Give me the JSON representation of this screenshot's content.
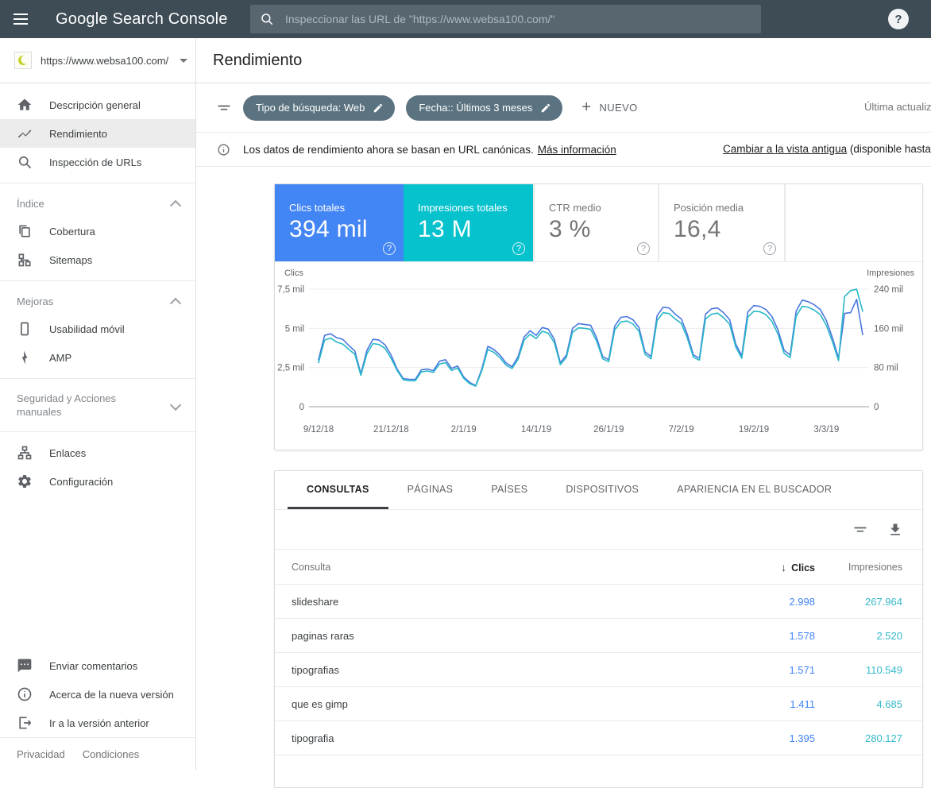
{
  "topbar": {
    "logo": "Google Search Console",
    "search_placeholder": "Inspeccionar las URL de \"https://www.websa100.com/\"",
    "help_label": "?"
  },
  "property": {
    "url": "https://www.websa100.com/"
  },
  "sidebar": {
    "items": [
      {
        "label": "Descripción general",
        "icon": "home-icon"
      },
      {
        "label": "Rendimiento",
        "icon": "trending-up-icon",
        "selected": true
      },
      {
        "label": "Inspección de URLs",
        "icon": "search-icon"
      }
    ],
    "sections": [
      {
        "title": "Índice",
        "expanded": true
      },
      {
        "title": "Mejoras",
        "expanded": true
      },
      {
        "title": "Seguridad y Acciones manuales",
        "expanded": false
      }
    ],
    "index_items": [
      {
        "label": "Cobertura",
        "icon": "coverage-icon"
      },
      {
        "label": "Sitemaps",
        "icon": "sitemap-icon"
      }
    ],
    "mejoras_items": [
      {
        "label": "Usabilidad móvil",
        "icon": "mobile-icon"
      },
      {
        "label": "AMP",
        "icon": "bolt-icon"
      }
    ],
    "extra_items": [
      {
        "label": "Enlaces",
        "icon": "links-icon"
      },
      {
        "label": "Configuración",
        "icon": "gear-icon"
      }
    ],
    "footer_items": [
      {
        "label": "Enviar comentarios",
        "icon": "feedback-icon"
      },
      {
        "label": "Acerca de la nueva versión",
        "icon": "info-icon"
      },
      {
        "label": "Ir a la versión anterior",
        "icon": "exit-icon"
      }
    ],
    "legal": [
      "Privacidad",
      "Condiciones"
    ]
  },
  "header": {
    "title": "Rendimiento"
  },
  "filters": {
    "chips": [
      {
        "label": "Tipo de búsqueda: Web"
      },
      {
        "label": "Fecha:: Últimos 3 meses"
      }
    ],
    "new_button": "NUEVO",
    "plus": "+",
    "last_update": "Última actualiza"
  },
  "notice": {
    "text": "Los datos de rendimiento ahora se basan en URL canónicas.",
    "link": "Más información",
    "right_link": "Cambiar a la vista antigua",
    "right_note": " (disponible hasta el"
  },
  "metrics": [
    {
      "label": "Clics totales",
      "value": "394 mil",
      "color": "#4285f4",
      "selected": true,
      "help": "?"
    },
    {
      "label": "Impresiones totales",
      "value": "13 M",
      "color": "#06c2cd",
      "selected": true,
      "help": "?"
    },
    {
      "label": "CTR medio",
      "value": "3 %",
      "color": "#ffffff",
      "selected": false,
      "help": "?"
    },
    {
      "label": "Posición media",
      "value": "16,4",
      "color": "#ffffff",
      "selected": false,
      "help": "?"
    }
  ],
  "chart_data": {
    "type": "line",
    "title": "",
    "ylabel_left": "Clics",
    "ylabel_right": "Impresiones",
    "grid": true,
    "legend_position": "none",
    "y_left_ticks": [
      "7,5 mil",
      "5 mil",
      "2,5 mil",
      "0"
    ],
    "y_right_ticks": [
      "240 mil",
      "160 mil",
      "80 mil",
      "0"
    ],
    "y_left_range_mil": [
      0,
      7.5
    ],
    "y_right_range_mil": [
      0,
      240
    ],
    "x_tick_labels": [
      "9/12/18",
      "21/12/18",
      "2/1/19",
      "14/1/19",
      "26/1/19",
      "7/2/19",
      "19/2/19",
      "3/3/19"
    ],
    "x_tick_positions": [
      0,
      12,
      24,
      36,
      48,
      60,
      72,
      84
    ],
    "x_range_days": [
      0,
      90
    ],
    "series": [
      {
        "name": "Clics",
        "axis": "left",
        "unit": "mil",
        "color": "#4a77e0",
        "values": [
          3.0,
          4.55,
          4.65,
          4.4,
          4.3,
          3.9,
          3.55,
          2.1,
          3.6,
          4.3,
          4.25,
          3.95,
          3.3,
          2.4,
          1.8,
          1.75,
          1.75,
          2.35,
          2.4,
          2.3,
          2.9,
          3.0,
          2.45,
          2.6,
          1.9,
          1.55,
          1.35,
          2.4,
          3.85,
          3.65,
          3.3,
          2.8,
          2.55,
          3.2,
          4.45,
          4.85,
          4.55,
          5.05,
          4.95,
          4.3,
          2.8,
          3.3,
          5.0,
          5.3,
          5.25,
          5.2,
          4.4,
          3.2,
          3.0,
          5.15,
          5.7,
          5.75,
          5.55,
          5.05,
          3.5,
          3.2,
          5.8,
          6.35,
          6.3,
          5.9,
          5.6,
          4.6,
          3.3,
          3.1,
          5.9,
          6.25,
          6.3,
          6.0,
          5.55,
          4.0,
          3.25,
          6.05,
          6.45,
          6.4,
          6.2,
          5.75,
          4.9,
          3.6,
          3.3,
          6.1,
          6.8,
          6.7,
          6.5,
          6.2,
          5.5,
          4.4,
          3.1,
          5.95,
          6.0,
          6.85,
          4.6
        ]
      },
      {
        "name": "Impresiones",
        "axis": "right",
        "unit": "mil",
        "color": "#27b8c7",
        "values": [
          90,
          136,
          140,
          132,
          128,
          117,
          107,
          64,
          108,
          129,
          127,
          119,
          99,
          74,
          55,
          53,
          53,
          71,
          73,
          70,
          87,
          90,
          74,
          79,
          58,
          47,
          42,
          73,
          117,
          111,
          100,
          85,
          78,
          97,
          136,
          148,
          139,
          154,
          150,
          131,
          86,
          101,
          152,
          161,
          160,
          158,
          134,
          98,
          92,
          157,
          173,
          175,
          169,
          154,
          107,
          98,
          176,
          192,
          190,
          179,
          170,
          140,
          101,
          95,
          179,
          189,
          191,
          182,
          168,
          122,
          99,
          183,
          195,
          194,
          188,
          174,
          148,
          109,
          100,
          185,
          205,
          203,
          197,
          188,
          166,
          133,
          94,
          225,
          237,
          240,
          195
        ]
      }
    ]
  },
  "table": {
    "tabs": [
      "CONSULTAS",
      "PÁGINAS",
      "PAÍSES",
      "DISPOSITIVOS",
      "APARIENCIA EN EL BUSCADOR"
    ],
    "active_tab": "CONSULTAS",
    "columns": {
      "query": "Consulta",
      "clicks": "Clics",
      "impressions": "Impresiones"
    },
    "sort": {
      "column": "Clics",
      "direction": "desc",
      "arrow": "↓"
    },
    "rows": [
      {
        "query": "slideshare",
        "clicks": "2.998",
        "impressions": "267.964"
      },
      {
        "query": "paginas raras",
        "clicks": "1.578",
        "impressions": "2.520"
      },
      {
        "query": "tipografias",
        "clicks": "1.571",
        "impressions": "110.549"
      },
      {
        "query": "que es gimp",
        "clicks": "1.411",
        "impressions": "4.685"
      },
      {
        "query": "tipografia",
        "clicks": "1.395",
        "impressions": "280.127"
      }
    ]
  },
  "colors": {
    "topbar": "#3d4c55",
    "chip": "#5b7380",
    "clicks_blue": "#4285f4",
    "impressions_teal": "#06c2cd",
    "clicks_line": "#4a77e0",
    "impressions_line": "#27b8c7",
    "table_clicks_text": "#4285f4",
    "table_impressions_text": "#35bac9"
  }
}
